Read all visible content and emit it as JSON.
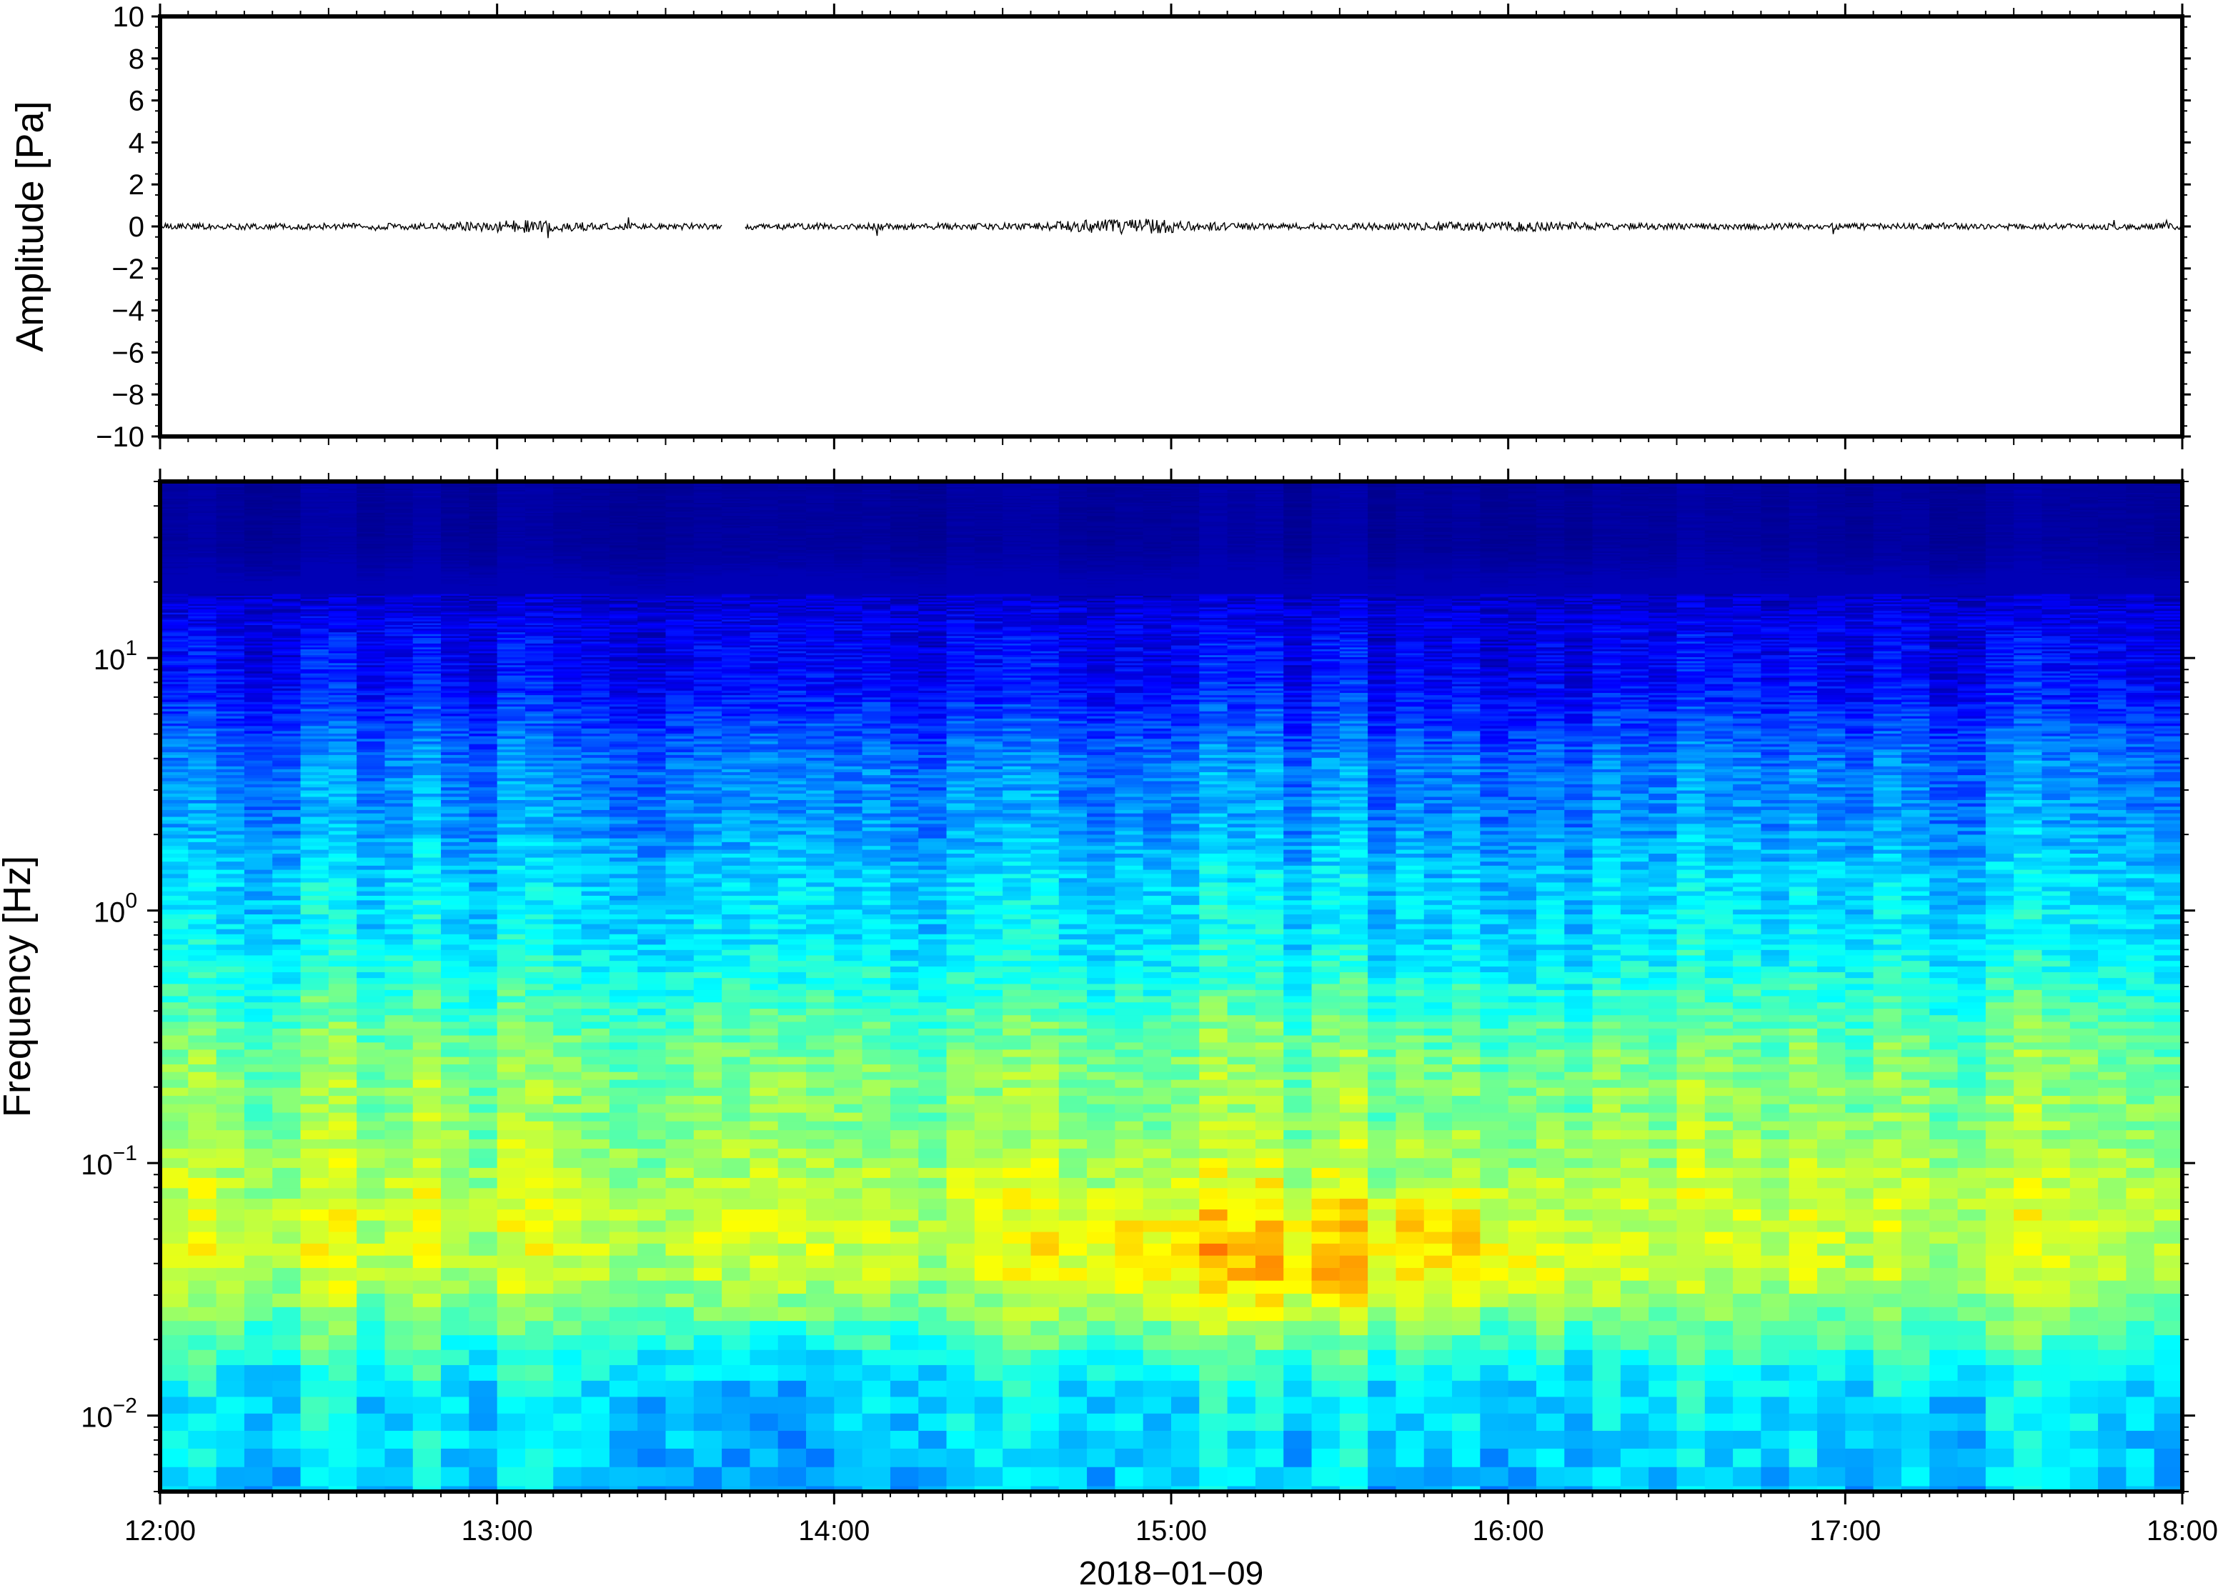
{
  "chart_data": [
    {
      "type": "line",
      "ylabel": "Amplitude [Pa]",
      "ylim": [
        -10,
        10
      ],
      "yticks": [
        "10",
        "8",
        "6",
        "4",
        "2",
        "0",
        "−2",
        "−4",
        "−6",
        "−8",
        "−10"
      ],
      "xlim": [
        "12:00",
        "18:00"
      ],
      "grid": false,
      "series_color": "#000000",
      "trace": {
        "baseline": 0,
        "typical_peak": 0.3,
        "max_peak": 0.6,
        "gaps": [
          [
            "13:40",
            "13:44"
          ]
        ]
      }
    },
    {
      "type": "heatmap",
      "ylabel": "Frequency [Hz]",
      "yscale": "log",
      "ylim": [
        0.005,
        50
      ],
      "yticks": [
        {
          "value": 10,
          "base": "10",
          "exp": "1"
        },
        {
          "value": 1,
          "base": "10",
          "exp": "0"
        },
        {
          "value": 0.1,
          "base": "10",
          "exp": "−1"
        },
        {
          "value": 0.01,
          "base": "10",
          "exp": "−2"
        }
      ],
      "xlabel": "2018−01−09",
      "xticks": [
        "12:00",
        "13:00",
        "14:00",
        "15:00",
        "16:00",
        "17:00",
        "18:00"
      ],
      "xlim": [
        "12:00",
        "18:00"
      ],
      "colormap": [
        "#00008f",
        "#0000ff",
        "#0080ff",
        "#00ffff",
        "#80ff80",
        "#ffff00",
        "#ff8000",
        "#ff0000"
      ],
      "energy_bands": [
        {
          "freq_hz": 30,
          "level": "lowest"
        },
        {
          "freq_hz": 10,
          "level": "very low"
        },
        {
          "freq_hz": 3,
          "level": "low"
        },
        {
          "freq_hz": 1,
          "level": "low-medium"
        },
        {
          "freq_hz": 0.2,
          "level": "medium-high"
        },
        {
          "freq_hz": 0.05,
          "level": "high"
        },
        {
          "freq_hz": 0.01,
          "level": "medium-low"
        }
      ],
      "hotspot": {
        "time": [
          "14:40",
          "16:10"
        ],
        "freq_hz": [
          0.02,
          0.07
        ]
      }
    }
  ]
}
